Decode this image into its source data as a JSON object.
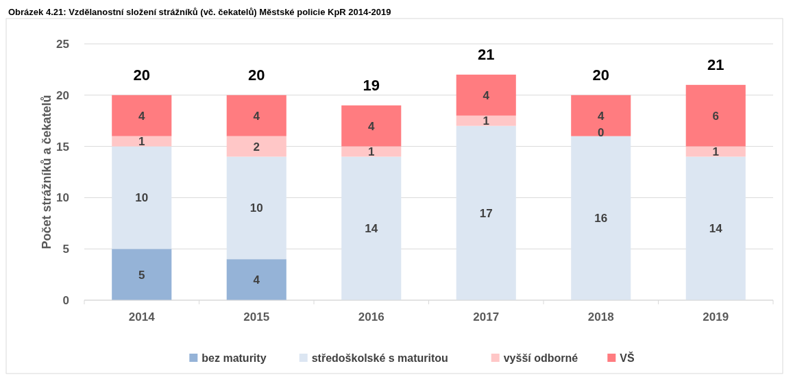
{
  "chart_data": {
    "type": "bar",
    "stacked": true,
    "title": "Obrázek 4.21: Vzdělanostní složení strážníků (vč. čekatelů) Městské policie KpR 2014-2019",
    "ylabel": "Počet strážníků  a čekatelů",
    "categories": [
      "2014",
      "2015",
      "2016",
      "2017",
      "2018",
      "2019"
    ],
    "series": [
      {
        "name": "bez maturity",
        "color": "#95b3d7",
        "values": [
          5,
          4,
          0,
          0,
          0,
          0
        ],
        "value_labels": [
          "5",
          "4",
          null,
          null,
          null,
          null
        ]
      },
      {
        "name": "středoškolské s maturitou",
        "color": "#dce6f2",
        "values": [
          10,
          10,
          14,
          17,
          16,
          14
        ],
        "value_labels": [
          "10",
          "10",
          "14",
          "17",
          "16",
          "14"
        ]
      },
      {
        "name": "vyšší odborné",
        "color": "#ffc7c7",
        "values": [
          1,
          2,
          1,
          1,
          0,
          1
        ],
        "value_labels": [
          "1",
          "2",
          "1",
          "1",
          "0",
          "1"
        ]
      },
      {
        "name": "VŠ",
        "color": "#ff7c80",
        "values": [
          4,
          4,
          4,
          4,
          4,
          6
        ],
        "value_labels": [
          "4",
          "4",
          "4",
          "4",
          "4",
          "6"
        ]
      }
    ],
    "totals": [
      "20",
      "20",
      "19",
      "21",
      "20",
      "21"
    ],
    "ylim": [
      0,
      25
    ],
    "yticks": [
      0,
      5,
      10,
      15,
      20,
      25
    ],
    "grid": "y",
    "legend": "bottom"
  }
}
